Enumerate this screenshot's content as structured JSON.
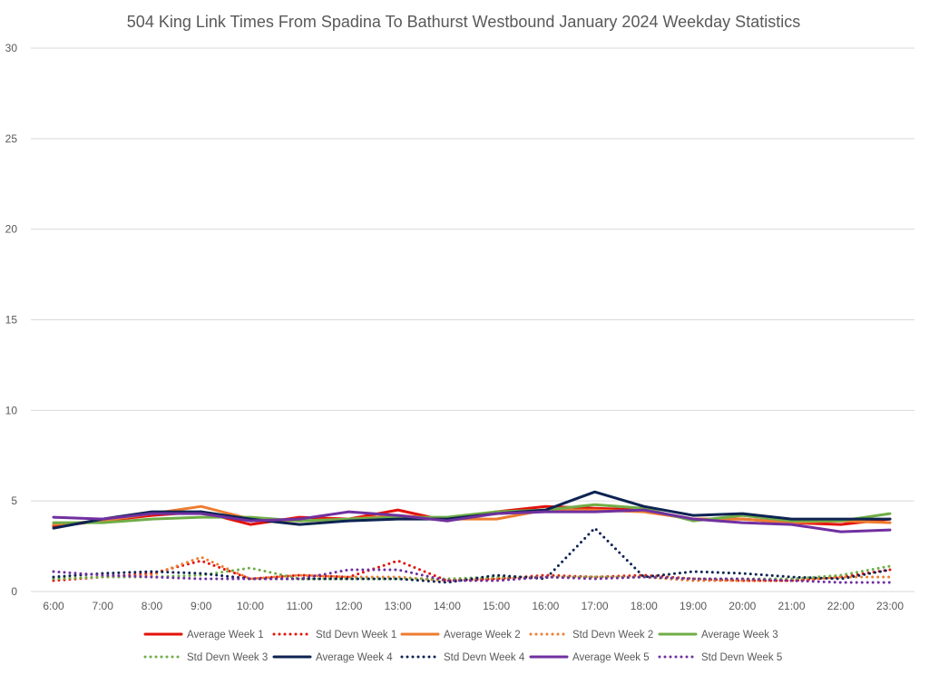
{
  "chart_data": {
    "type": "line",
    "title": "504 King Link Times From Spadina To Bathurst Westbound January 2024 Weekday Statistics",
    "xlabel": "",
    "ylabel": "",
    "ylim": [
      0,
      30
    ],
    "yticks": [
      0,
      5,
      10,
      15,
      20,
      25,
      30
    ],
    "grid": true,
    "legend_position": "bottom",
    "categories": [
      "6:00",
      "7:00",
      "8:00",
      "9:00",
      "10:00",
      "11:00",
      "12:00",
      "13:00",
      "14:00",
      "15:00",
      "16:00",
      "17:00",
      "18:00",
      "19:00",
      "20:00",
      "21:00",
      "22:00",
      "23:00"
    ],
    "series": [
      {
        "name": "Average Week 1",
        "color": "#e3120b",
        "style": "solid",
        "values": [
          3.6,
          3.9,
          4.2,
          4.4,
          3.7,
          4.1,
          4.0,
          4.5,
          3.9,
          4.4,
          4.7,
          4.6,
          4.5,
          4.0,
          4.0,
          3.8,
          3.7,
          4.0
        ]
      },
      {
        "name": "Std Devn Week 1",
        "color": "#e3120b",
        "style": "dotted",
        "values": [
          0.6,
          0.8,
          1.0,
          1.7,
          0.7,
          0.9,
          0.8,
          1.7,
          0.6,
          0.7,
          0.9,
          0.8,
          0.9,
          0.7,
          0.6,
          0.6,
          0.8,
          1.2
        ]
      },
      {
        "name": "Average Week 2",
        "color": "#ed7d31",
        "style": "solid",
        "values": [
          3.7,
          3.9,
          4.3,
          4.7,
          4.0,
          3.9,
          4.0,
          4.2,
          4.0,
          4.0,
          4.5,
          4.5,
          4.4,
          4.0,
          4.0,
          3.8,
          3.9,
          3.8
        ]
      },
      {
        "name": "Std Devn Week 2",
        "color": "#ed7d31",
        "style": "dotted",
        "values": [
          0.7,
          0.8,
          0.9,
          1.9,
          0.7,
          0.9,
          0.8,
          0.8,
          0.6,
          0.7,
          0.8,
          0.8,
          0.8,
          0.6,
          0.6,
          0.6,
          0.8,
          0.8
        ]
      },
      {
        "name": "Average Week 3",
        "color": "#70ad47",
        "style": "solid",
        "values": [
          3.8,
          3.8,
          4.0,
          4.1,
          4.1,
          3.9,
          4.0,
          4.1,
          4.1,
          4.4,
          4.5,
          4.8,
          4.6,
          3.9,
          4.2,
          3.9,
          3.9,
          4.3
        ]
      },
      {
        "name": "Std Devn Week 3",
        "color": "#70ad47",
        "style": "dotted",
        "values": [
          0.7,
          0.8,
          0.8,
          0.9,
          1.3,
          0.7,
          0.7,
          0.7,
          0.7,
          0.8,
          0.8,
          0.8,
          0.8,
          0.7,
          0.7,
          0.7,
          0.9,
          1.4
        ]
      },
      {
        "name": "Average Week 4",
        "color": "#0d2352",
        "style": "solid",
        "values": [
          3.5,
          4.0,
          4.4,
          4.4,
          4.0,
          3.7,
          3.9,
          4.0,
          4.0,
          4.3,
          4.5,
          5.5,
          4.7,
          4.2,
          4.3,
          4.0,
          4.0,
          4.0
        ]
      },
      {
        "name": "Std Devn Week 4",
        "color": "#0d2352",
        "style": "dotted",
        "values": [
          0.8,
          1.0,
          1.1,
          1.0,
          0.7,
          0.7,
          0.7,
          0.7,
          0.5,
          0.9,
          0.7,
          3.5,
          0.8,
          1.1,
          1.0,
          0.8,
          0.7,
          1.2
        ]
      },
      {
        "name": "Average Week 5",
        "color": "#7030a0",
        "style": "solid",
        "values": [
          4.1,
          4.0,
          4.3,
          4.3,
          3.9,
          4.0,
          4.4,
          4.2,
          3.9,
          4.3,
          4.4,
          4.4,
          4.5,
          4.0,
          3.8,
          3.7,
          3.3,
          3.4
        ]
      },
      {
        "name": "Std Devn Week 5",
        "color": "#7030a0",
        "style": "dotted",
        "values": [
          1.1,
          0.9,
          0.8,
          0.7,
          0.7,
          0.7,
          1.2,
          1.2,
          0.6,
          0.6,
          0.8,
          0.7,
          0.8,
          0.7,
          0.7,
          0.6,
          0.5,
          0.5
        ]
      }
    ]
  }
}
